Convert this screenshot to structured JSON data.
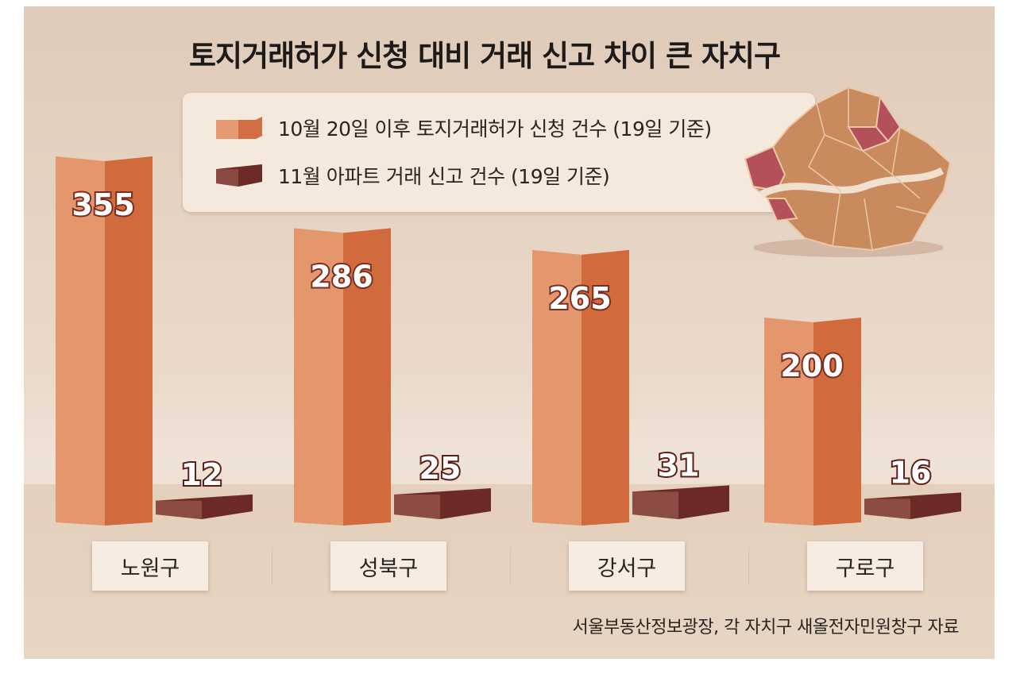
{
  "chart_data": {
    "type": "bar",
    "title": "토지거래허가 신청 대비 거래 신고 차이 큰 자치구",
    "categories": [
      "노원구",
      "성북구",
      "강서구",
      "구로구"
    ],
    "series": [
      {
        "name": "10월 20일 이후 토지거래허가 신청 건수 (19일 기준)",
        "values": [
          355,
          286,
          265,
          200
        ],
        "color": "#d9784a"
      },
      {
        "name": "11월 아파트 거래 신고 건수 (19일 기준)",
        "values": [
          12,
          25,
          31,
          16
        ],
        "color": "#6e2a26"
      }
    ],
    "xlabel": "",
    "ylabel": "",
    "legend_position": "top",
    "grid": false
  },
  "source": "서울부동산정보광장, 각 자치구 새올전자민원창구 자료",
  "map": {
    "icon": "seoul-district-map",
    "highlight_color": "#b3505a",
    "base_color": "#c98a5e"
  }
}
